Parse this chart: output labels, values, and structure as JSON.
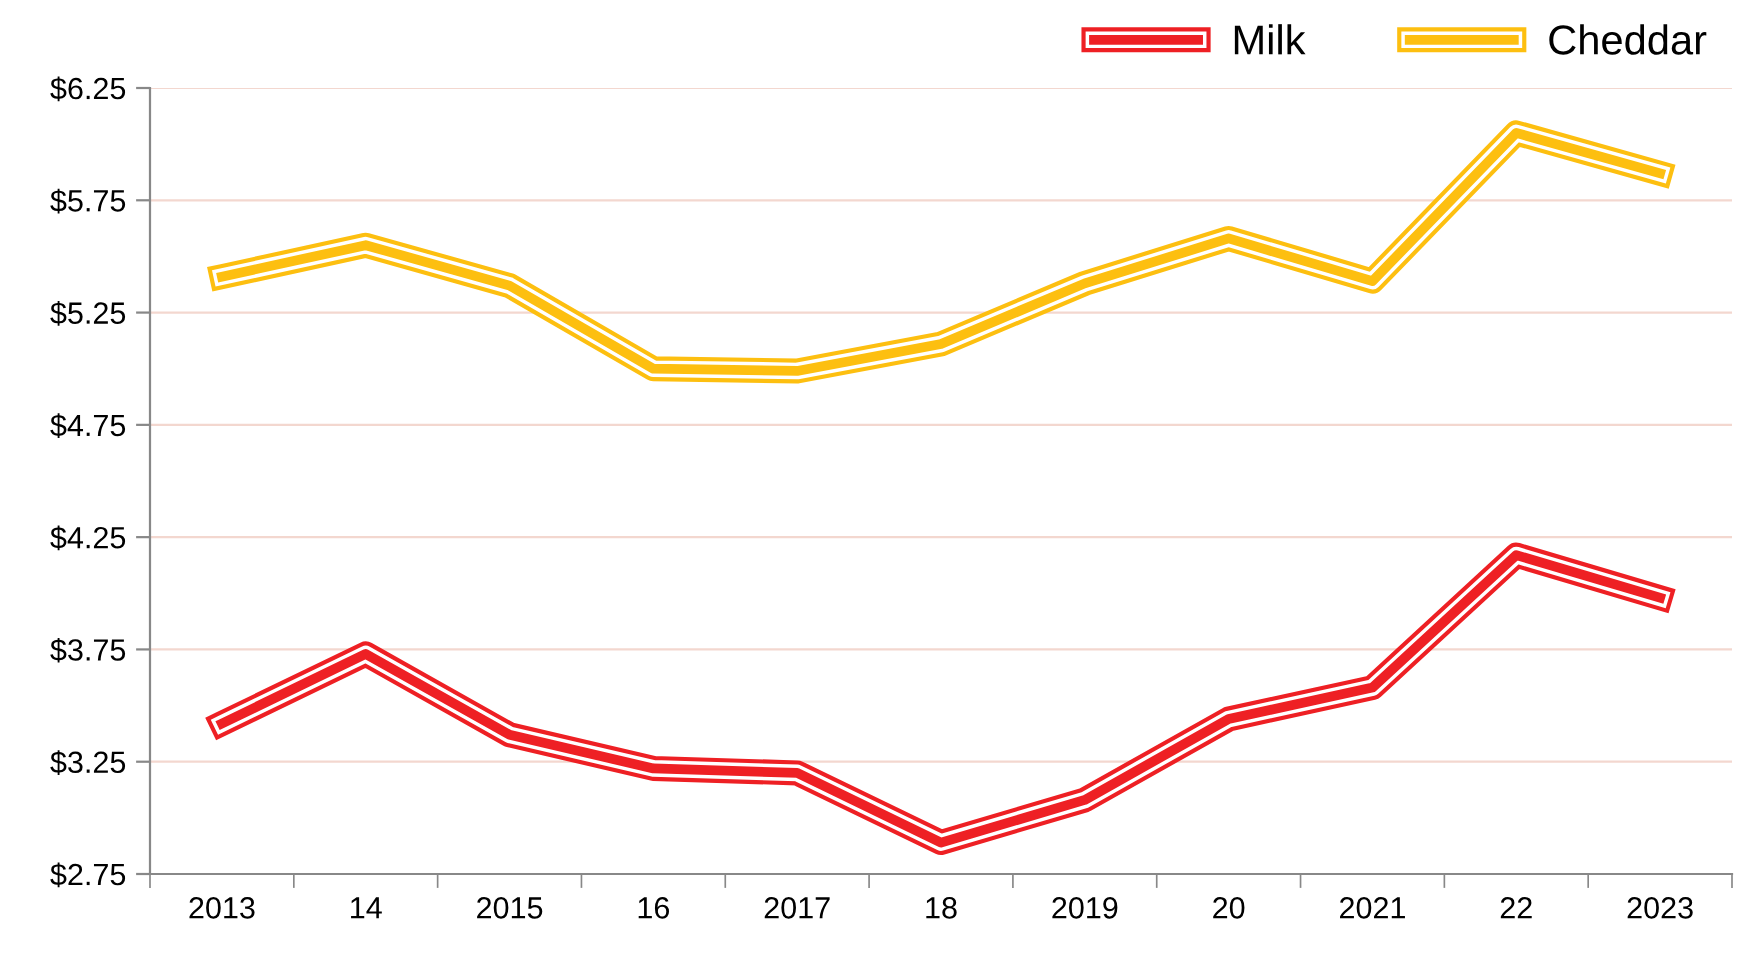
{
  "chart_data": {
    "type": "line",
    "categories": [
      "2013",
      "14",
      "2015",
      "16",
      "2017",
      "18",
      "2019",
      "20",
      "2021",
      "22",
      "2023"
    ],
    "series": [
      {
        "name": "Milk",
        "color": "#ee2024",
        "values": [
          3.42,
          3.73,
          3.37,
          3.22,
          3.2,
          2.89,
          3.08,
          3.44,
          3.58,
          4.17,
          3.98
        ]
      },
      {
        "name": "Cheddar",
        "color": "#fdbf10",
        "values": [
          5.41,
          5.55,
          5.37,
          5.0,
          4.99,
          5.11,
          5.38,
          5.58,
          5.39,
          6.05,
          5.87
        ]
      }
    ],
    "ylim": [
      2.75,
      6.25
    ],
    "yticks": [
      {
        "value": 2.75,
        "label": "$2.75"
      },
      {
        "value": 3.25,
        "label": "$3.25"
      },
      {
        "value": 3.75,
        "label": "$3.75"
      },
      {
        "value": 4.25,
        "label": "$4.25"
      },
      {
        "value": 4.75,
        "label": "$4.75"
      },
      {
        "value": 5.25,
        "label": "$5.25"
      },
      {
        "value": 5.75,
        "label": "$5.75"
      },
      {
        "value": 6.25,
        "label": "$6.25"
      }
    ],
    "grid": "y",
    "legend": "top right",
    "marker": "none",
    "line_style": "solid"
  }
}
